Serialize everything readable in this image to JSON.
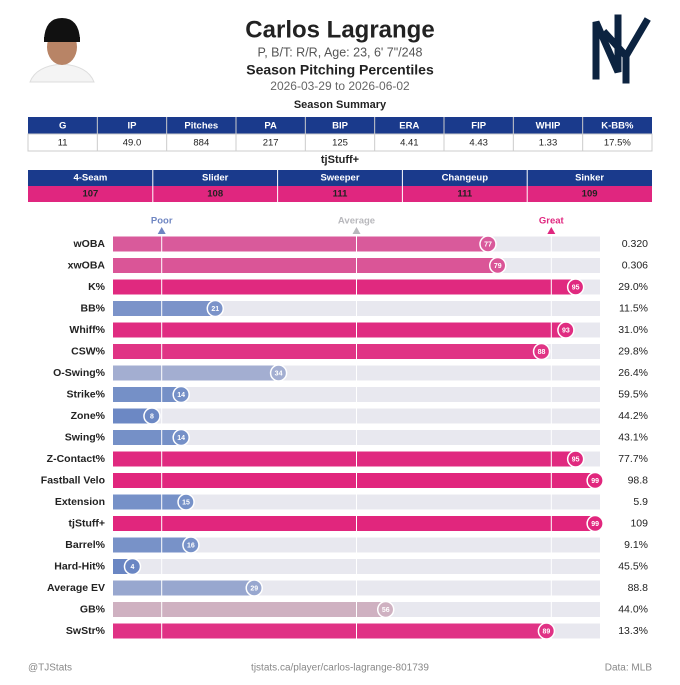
{
  "header": {
    "name": "Carlos Lagrange",
    "subtitle": "P, B/T: R/R, Age: 23, 6' 7\"/248",
    "title": "Season Pitching Percentiles",
    "dates": "2026-03-29 to 2026-06-02"
  },
  "summary": {
    "title": "Season Summary",
    "columns": [
      "G",
      "IP",
      "Pitches",
      "PA",
      "BIP",
      "ERA",
      "FIP",
      "WHIP",
      "K-BB%"
    ],
    "values": [
      11,
      "49.0",
      884,
      217,
      125,
      4.41,
      4.43,
      1.33,
      "17.5%"
    ]
  },
  "stuff": {
    "title": "tjStuff+",
    "columns": [
      "4-Seam",
      "Slider",
      "Sweeper",
      "Changeup",
      "Sinker"
    ],
    "values": [
      107,
      108,
      111,
      111,
      109
    ],
    "header_color": "#1a3a8c",
    "value_color": "#e0267f"
  },
  "chart_data": {
    "type": "bar",
    "orientation": "horizontal",
    "xlim": [
      0,
      100
    ],
    "markers": [
      {
        "label": "Poor",
        "value": 10,
        "color": "#6f86c2"
      },
      {
        "label": "Average",
        "value": 50,
        "color": "#b8b8bc"
      },
      {
        "label": "Great",
        "value": 90,
        "color": "#e0267f"
      }
    ],
    "categories": [
      "wOBA",
      "xwOBA",
      "K%",
      "BB%",
      "Whiff%",
      "CSW%",
      "O-Swing%",
      "Strike%",
      "Zone%",
      "Swing%",
      "Z-Contact%",
      "Fastball Velo",
      "Extension",
      "tjStuff+",
      "Barrel%",
      "Hard-Hit%",
      "Average EV",
      "GB%",
      "SwStr%"
    ],
    "values": [
      77,
      79,
      95,
      21,
      93,
      88,
      34,
      14,
      8,
      14,
      95,
      99,
      15,
      99,
      16,
      4,
      29,
      56,
      89
    ],
    "colors": [
      "#d95a9b",
      "#da5597",
      "#e0297f",
      "#7b93c9",
      "#e02c81",
      "#e03485",
      "#a3aed1",
      "#7590c7",
      "#6c88c4",
      "#7590c7",
      "#e0297f",
      "#e1267d",
      "#7691c8",
      "#e1267d",
      "#7892c8",
      "#6a86c3",
      "#98a7cf",
      "#cfb1c1",
      "#e03285"
    ],
    "stats": [
      "0.320",
      "0.306",
      "29.0%",
      "11.5%",
      "31.0%",
      "29.8%",
      "26.4%",
      "59.5%",
      "44.2%",
      "43.1%",
      "77.7%",
      "98.8",
      "5.9",
      "109",
      "9.1%",
      "45.5%",
      "88.8",
      "44.0%",
      "13.3%"
    ]
  },
  "footer": {
    "left": "@TJStats",
    "center": "tjstats.ca/player/carlos-lagrange-801739",
    "right": "Data: MLB"
  }
}
